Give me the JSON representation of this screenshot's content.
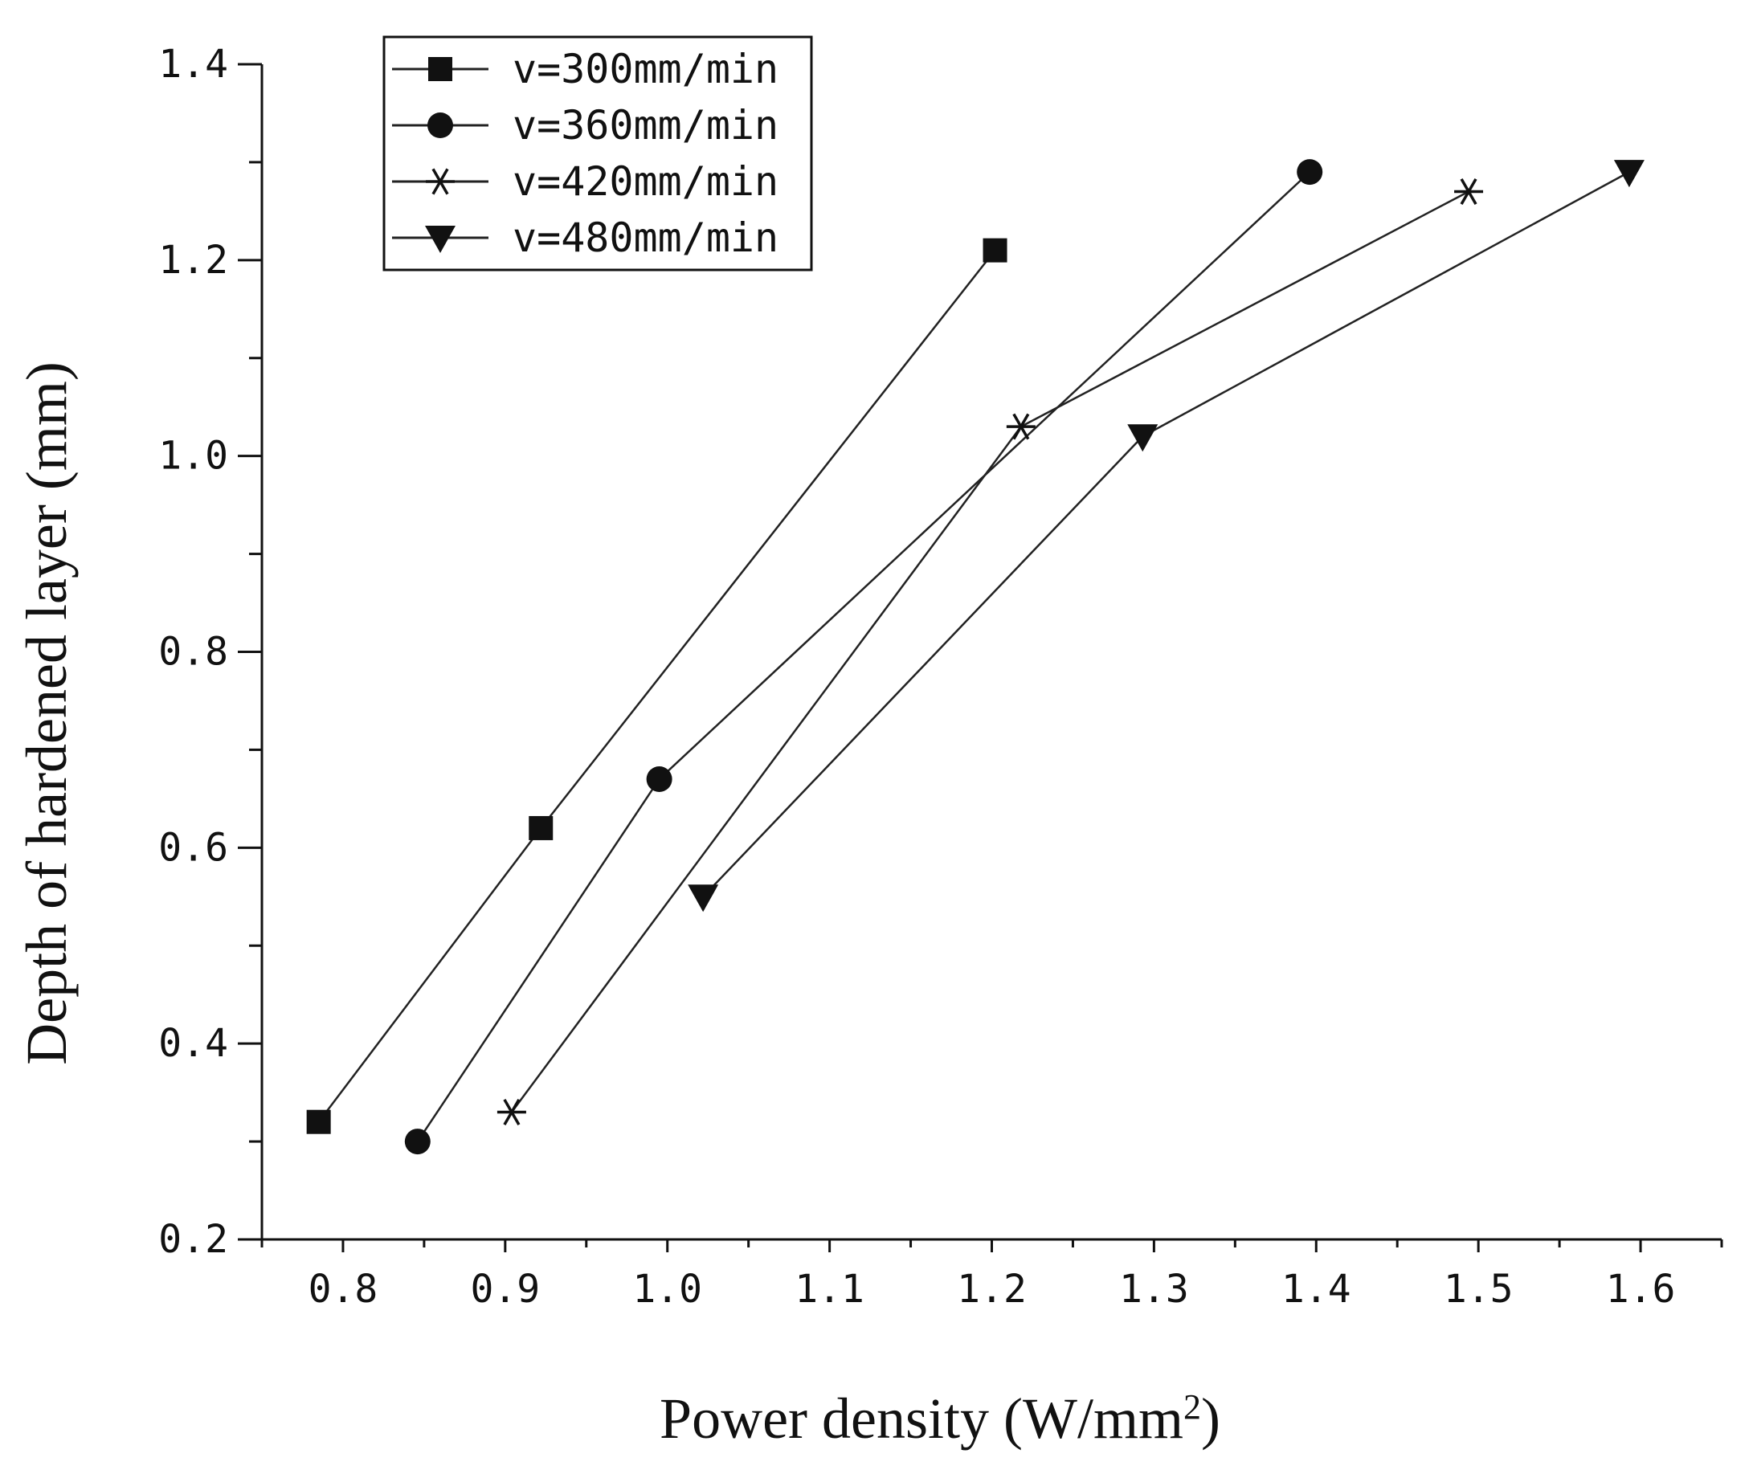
{
  "chart_data": {
    "type": "line",
    "title": "",
    "xlabel": "Power density (W/mm",
    "xlabel_sup": "2",
    "xlabel_end": ")",
    "ylabel": "Depth of hardened layer (mm)",
    "xlim": [
      0.75,
      1.65
    ],
    "ylim": [
      0.2,
      1.4
    ],
    "xticks": [
      0.8,
      0.9,
      1.0,
      1.1,
      1.2,
      1.3,
      1.4,
      1.5,
      1.6
    ],
    "xtick_labels": [
      "0.8",
      "0.9",
      "1.0",
      "1.1",
      "1.2",
      "1.3",
      "1.4",
      "1.5",
      "1.6"
    ],
    "yticks": [
      0.2,
      0.4,
      0.6,
      0.8,
      1.0,
      1.2,
      1.4
    ],
    "ytick_labels": [
      "0.2",
      "0.4",
      "0.6",
      "0.8",
      "1.0",
      "1.2",
      "1.4"
    ],
    "legend_position": "top-left",
    "series": [
      {
        "name": "v=300mm/min",
        "marker": "square",
        "x": [
          0.785,
          0.922,
          1.202
        ],
        "y": [
          0.32,
          0.62,
          1.21
        ]
      },
      {
        "name": "v=360mm/min",
        "marker": "circle",
        "x": [
          0.846,
          0.995,
          1.396
        ],
        "y": [
          0.3,
          0.67,
          1.29
        ]
      },
      {
        "name": "v=420mm/min",
        "marker": "star",
        "x": [
          0.904,
          1.218,
          1.494
        ],
        "y": [
          0.33,
          1.03,
          1.27
        ]
      },
      {
        "name": "v=480mm/min",
        "marker": "triangle-down",
        "x": [
          1.022,
          1.293,
          1.593
        ],
        "y": [
          0.55,
          1.02,
          1.29
        ]
      }
    ]
  }
}
